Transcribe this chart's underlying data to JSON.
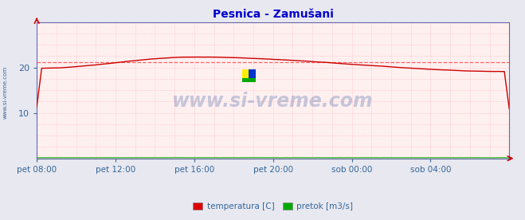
{
  "title": "Pesnica - Zamušani",
  "title_color": "#0000cc",
  "bg_color": "#e8e8f0",
  "plot_bg_color": "#fff0f0",
  "grid_color": "#ffbbbb",
  "grid_style": ":",
  "axis_color": "#6666aa",
  "tick_color": "#336699",
  "watermark": "www.si-vreme.com",
  "watermark_color": "#4466aa",
  "xlim": [
    0,
    288
  ],
  "ylim": [
    0,
    30
  ],
  "yticks": [
    10,
    20
  ],
  "xtick_labels": [
    "pet 08:00",
    "pet 12:00",
    "pet 16:00",
    "pet 20:00",
    "sob 00:00",
    "sob 04:00"
  ],
  "xtick_positions": [
    0,
    48,
    96,
    144,
    192,
    240
  ],
  "legend_labels": [
    "temperatura [C]",
    "pretok [m3/s]"
  ],
  "legend_colors": [
    "#dd0000",
    "#00aa00"
  ],
  "temp_color": "#cc0000",
  "flow_color": "#00aa00",
  "avg_line_color": "#ff5555",
  "avg_line_style": "--",
  "avg_value": 21.1,
  "temp_start": 19.8,
  "temp_peak": 22.3,
  "temp_peak_x": 96,
  "temp_end": 19.1,
  "flow_value": 0.15,
  "side_label": "www.si-vreme.com",
  "side_label_color": "#336699",
  "arrow_color": "#cc0000"
}
